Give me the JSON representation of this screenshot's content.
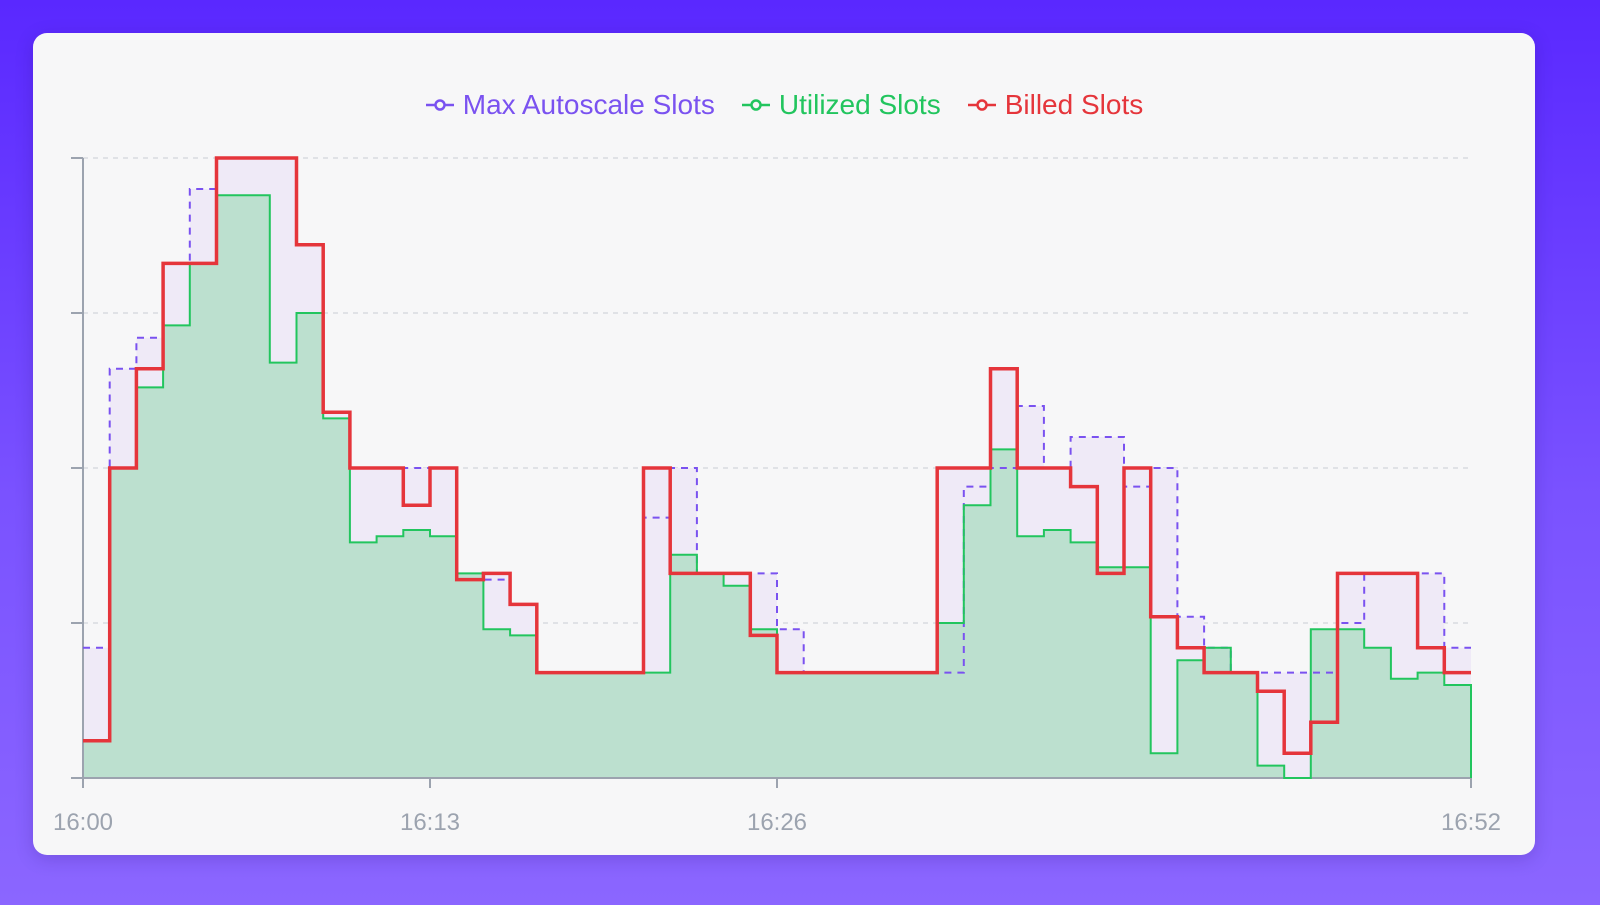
{
  "colors": {
    "max": "#7a52f0",
    "utilized": "#22c55e",
    "utilized_fill": "#bce0cf",
    "billed": "#e5353b",
    "gap_fill": "#efeaf7",
    "axis": "#9ca3af",
    "grid": "#d1d5db",
    "tick_text": "#9ca3af"
  },
  "chart_data": {
    "type": "area",
    "step": true,
    "x_unit": "minutes",
    "x": [
      0,
      1,
      2,
      3,
      4,
      5,
      6,
      7,
      8,
      9,
      10,
      11,
      12,
      13,
      14,
      15,
      16,
      17,
      18,
      19,
      20,
      21,
      22,
      23,
      24,
      25,
      26,
      27,
      28,
      29,
      30,
      31,
      32,
      33,
      34,
      35,
      36,
      37,
      38,
      39,
      40,
      41,
      42,
      43,
      44,
      45,
      46,
      47,
      48,
      49,
      50,
      51,
      52
    ],
    "xlim": [
      0,
      52
    ],
    "ylim": [
      0,
      100
    ],
    "x_ticks": [
      "16:00",
      "16:13",
      "16:26",
      "16:52"
    ],
    "grid": true,
    "legend": "top-center",
    "series": [
      {
        "name": "Max Autoscale Slots",
        "style": "dashed",
        "values": [
          21,
          66,
          71,
          83,
          95,
          100,
          100,
          100,
          86,
          59,
          50,
          50,
          50,
          50,
          32,
          32,
          28,
          17,
          17,
          17,
          17,
          42,
          50,
          33,
          33,
          33,
          24,
          17,
          17,
          17,
          17,
          17,
          17,
          47,
          50,
          60,
          50,
          55,
          55,
          47,
          50,
          26,
          21,
          17,
          17,
          17,
          17,
          25,
          33,
          33,
          33,
          21,
          17
        ]
      },
      {
        "name": "Utilized Slots",
        "style": "solid-filled",
        "values": [
          6,
          50,
          63,
          73,
          83,
          94,
          94,
          67,
          75,
          58,
          38,
          39,
          40,
          39,
          33,
          24,
          23,
          17,
          17,
          17,
          17,
          17,
          36,
          33,
          31,
          24,
          17,
          17,
          17,
          17,
          17,
          17,
          25,
          44,
          53,
          39,
          40,
          38,
          34,
          34,
          4,
          19,
          21,
          17,
          2,
          0,
          24,
          24,
          21,
          16,
          17,
          15,
          15
        ]
      },
      {
        "name": "Billed Slots",
        "style": "solid",
        "values": [
          6,
          50,
          66,
          83,
          83,
          100,
          100,
          100,
          86,
          59,
          50,
          50,
          44,
          50,
          32,
          33,
          28,
          17,
          17,
          17,
          17,
          50,
          33,
          33,
          33,
          23,
          17,
          17,
          17,
          17,
          17,
          17,
          50,
          50,
          66,
          50,
          50,
          47,
          33,
          50,
          26,
          21,
          17,
          17,
          14,
          4,
          9,
          33,
          33,
          33,
          21,
          17,
          17
        ]
      }
    ]
  }
}
